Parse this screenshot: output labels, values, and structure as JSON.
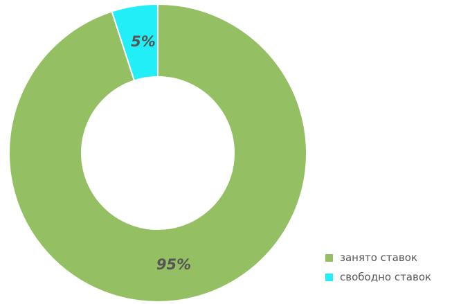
{
  "chart_data": {
    "type": "pie",
    "donut": true,
    "categories": [
      "занято ставок",
      "свободно ставок"
    ],
    "values": [
      95,
      5
    ],
    "labels": [
      "95%",
      "5%"
    ],
    "colors": [
      "#95bf63",
      "#22eef8"
    ],
    "title": "",
    "legend_position": "bottom-right"
  }
}
